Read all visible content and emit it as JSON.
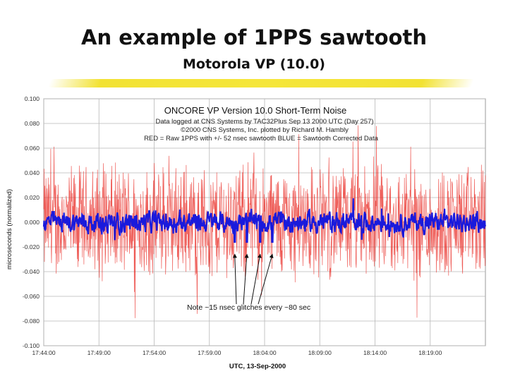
{
  "slide": {
    "title": "An example of 1PPS sawtooth",
    "subtitle": "Motorola VP (10.0)"
  },
  "chart_data": {
    "type": "line",
    "title": "ONCORE VP Version 10.0 Short-Term Noise",
    "subtitle_lines": [
      "Data logged at CNS Systems by TAC32Plus  Sep 13 2000 UTC (Day 257)",
      "©2000 CNS Systems, Inc.  plotted by Richard M. Hambly",
      "RED = Raw 1PPS with +/- 52 nsec sawtooth      BLUE = Sawtooth Corrected Data"
    ],
    "xlabel": "UTC, 13-Sep-2000",
    "ylabel": "microseconds (normalized)",
    "x_ticks": [
      "17:44:00",
      "17:49:00",
      "17:54:00",
      "17:59:00",
      "18:04:00",
      "18:09:00",
      "18:14:00",
      "18:19:00"
    ],
    "y_ticks": [
      "0.100",
      "0.080",
      "0.060",
      "0.040",
      "0.020",
      "0.000",
      "-0.020",
      "-0.040",
      "-0.060",
      "-0.080",
      "-0.100"
    ],
    "ylim": [
      -0.1,
      0.1
    ],
    "x_range_minutes": [
      0,
      40
    ],
    "grid": true,
    "series": [
      {
        "name": "Raw 1PPS with +/- 52 nsec sawtooth",
        "color": "#e8231c",
        "amplitude": 0.052
      },
      {
        "name": "Sawtooth Corrected Data",
        "color": "#1a1adc",
        "amplitude": 0.006
      }
    ],
    "annotation": {
      "text": "Note ~15 nsec glitches every ~80 sec",
      "glitch_times_minutes": [
        17.3,
        18.4,
        19.6,
        20.7
      ]
    }
  }
}
